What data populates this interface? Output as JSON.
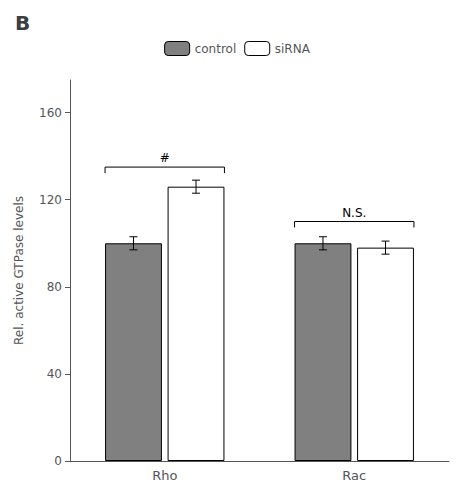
{
  "chart_data": {
    "type": "bar",
    "title": "B",
    "categories": [
      "Rho",
      "Rac"
    ],
    "series": [
      {
        "name": "control",
        "color": "#808080",
        "values": [
          100,
          100
        ],
        "errors": [
          3,
          3
        ]
      },
      {
        "name": "siRNA",
        "color": "#ffffff",
        "values": [
          126,
          98
        ],
        "errors": [
          3,
          3
        ]
      }
    ],
    "ylabel": "Rel. active GTPase levels",
    "ylim": [
      0,
      175
    ],
    "yticks": [
      0,
      40,
      80,
      120,
      160
    ],
    "grid": false,
    "legend": "top",
    "annotations": [
      {
        "text": "#",
        "category": "Rho",
        "y": 135
      },
      {
        "text": "N.S.",
        "category": "Rac",
        "y": 110
      }
    ]
  }
}
